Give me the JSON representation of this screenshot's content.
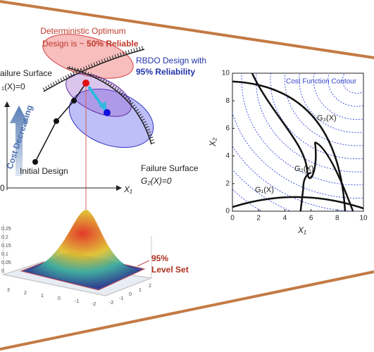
{
  "left": {
    "optimum_line1": "Deterministic Optimum",
    "optimum_line2": "Design is ~ ",
    "optimum_bold": "50% Reliable",
    "rbdo_line1": "RBDO Design with",
    "rbdo_bold": "95% Reliability",
    "surface1_line1": "ailure Surface",
    "surface1_line2": "₁(X)=0",
    "cost": "Cost Decreasing",
    "initial": "Initial Design",
    "surface2_line1": "Failure Surface",
    "surface2_line2": "G₂(X)=0",
    "origin": "0",
    "x_axis": "X₁"
  },
  "pdf_plot": {
    "zticks": [
      "0.25",
      "0.2",
      "0.15",
      "0.1",
      "0.05",
      "0"
    ],
    "xticks": [
      "3",
      "2",
      "1",
      "0",
      "-1",
      "-2"
    ],
    "yticks": [
      "-2",
      "-1",
      "0",
      "1",
      "2"
    ],
    "label1": "95%",
    "label2": "Level Set"
  },
  "contour_plot": {
    "legend": "Cost Function Contour",
    "g3": "G₃(X)",
    "g2": "G₂(X)",
    "g1": "G₁(X)",
    "xlabel": "X₁",
    "ylabel": "X₂",
    "xticks": [
      0,
      2,
      4,
      6,
      8,
      10
    ],
    "yticks": [
      0,
      2,
      4,
      6,
      8,
      10
    ]
  }
}
